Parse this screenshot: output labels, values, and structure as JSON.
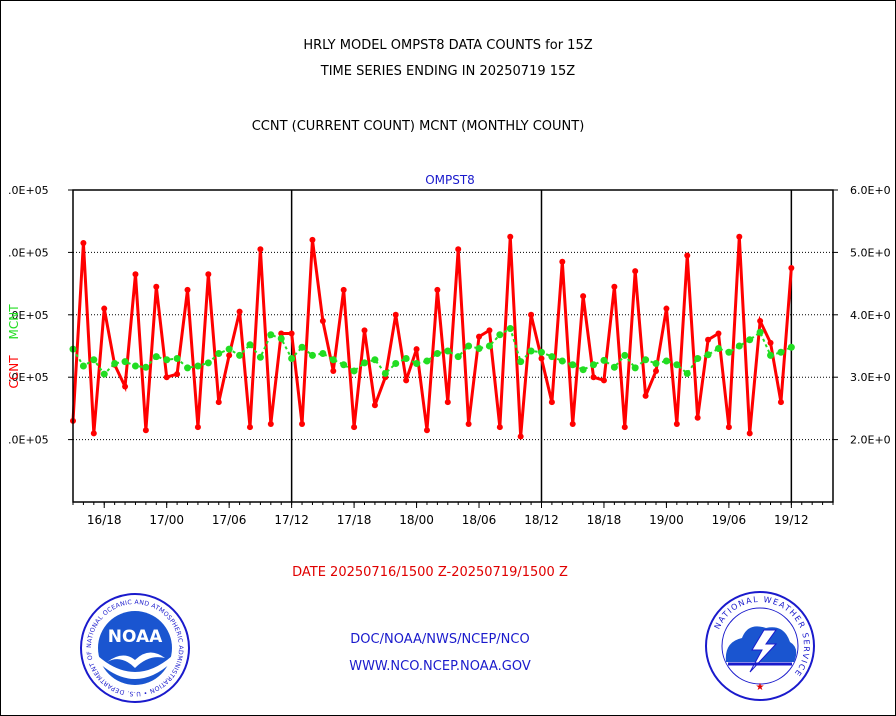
{
  "titles": {
    "line1": "HRLY MODEL OMPST8 DATA COUNTS for 15Z",
    "line2": "TIME SERIES ENDING IN 20250719 15Z",
    "line3": "CCNT (CURRENT COUNT) MCNT (MONTHLY COUNT)"
  },
  "footer": {
    "date_range": "DATE 20250716/1500 Z-20250719/1500 Z",
    "org": "DOC/NOAA/NWS/NCEP/NCO",
    "url": "WWW.NCO.NCEP.NOAA.GOV"
  },
  "logos": {
    "noaa_text": "NOAA",
    "noaa_ring": "NATIONAL OCEANIC AND ATMOSPHERIC ADMINISTRATION • U.S. DEPARTMENT OF COMMERCE •",
    "nws_ring": "NATIONAL WEATHER SERVICE"
  },
  "colors": {
    "ccnt": "#ff0000",
    "mcnt": "#22dd22",
    "title_blue": "#1a1acc"
  },
  "chart_data": {
    "type": "line",
    "title": "OMPST8",
    "ylabel_left_ccnt": "CCNT",
    "ylabel_left_mcnt": "MCNT",
    "ylim": [
      100000,
      600000
    ],
    "y_ticks": [
      200000,
      300000,
      400000,
      500000,
      600000
    ],
    "y_tick_labels_left": [
      ".0E+05",
      ".0E+05",
      ".0E+05",
      ".0E+05",
      ".0E+05"
    ],
    "y_tick_labels_right": [
      "2.0E+0",
      "3.0E+0",
      "4.0E+0",
      "5.0E+0",
      "6.0E+0"
    ],
    "x_start_hour": 0,
    "x_end_hour": 73,
    "x_ticks": [
      3,
      9,
      15,
      21,
      27,
      33,
      39,
      45,
      51,
      57,
      63,
      69
    ],
    "x_tick_labels": [
      "16/18",
      "17/00",
      "17/06",
      "17/12",
      "17/18",
      "18/00",
      "18/06",
      "18/12",
      "18/18",
      "19/00",
      "19/06",
      "19/12"
    ],
    "day_lines": [
      21,
      45,
      69
    ],
    "series": [
      {
        "name": "CCNT",
        "color": "#ff0000",
        "values": [
          230000,
          515000,
          210000,
          410000,
          320000,
          285000,
          465000,
          215000,
          445000,
          300000,
          305000,
          440000,
          220000,
          465000,
          260000,
          335000,
          405000,
          220000,
          505000,
          225000,
          370000,
          370000,
          225000,
          520000,
          390000,
          310000,
          440000,
          220000,
          375000,
          255000,
          300000,
          400000,
          295000,
          345000,
          215000,
          440000,
          260000,
          505000,
          225000,
          365000,
          375000,
          220000,
          525000,
          205000,
          400000,
          330000,
          260000,
          485000,
          225000,
          430000,
          300000,
          295000,
          445000,
          220000,
          470000,
          270000,
          310000,
          410000,
          225000,
          495000,
          235000,
          360000,
          370000,
          220000,
          525000,
          210000,
          390000,
          355000,
          260000,
          475000
        ]
      },
      {
        "name": "MCNT",
        "color": "#22dd22",
        "values": [
          345000,
          318000,
          328000,
          305000,
          322000,
          325000,
          318000,
          316000,
          333000,
          328000,
          330000,
          315000,
          318000,
          323000,
          338000,
          345000,
          335000,
          352000,
          332000,
          368000,
          362000,
          330000,
          348000,
          335000,
          338000,
          328000,
          320000,
          310000,
          323000,
          328000,
          306000,
          322000,
          330000,
          322000,
          326000,
          338000,
          342000,
          333000,
          350000,
          346000,
          350000,
          368000,
          378000,
          325000,
          342000,
          340000,
          333000,
          326000,
          320000,
          312000,
          320000,
          327000,
          316000,
          335000,
          315000,
          328000,
          322000,
          326000,
          320000,
          306000,
          330000,
          336000,
          346000,
          340000,
          350000,
          360000,
          372000,
          335000,
          340000,
          348000
        ]
      }
    ]
  }
}
